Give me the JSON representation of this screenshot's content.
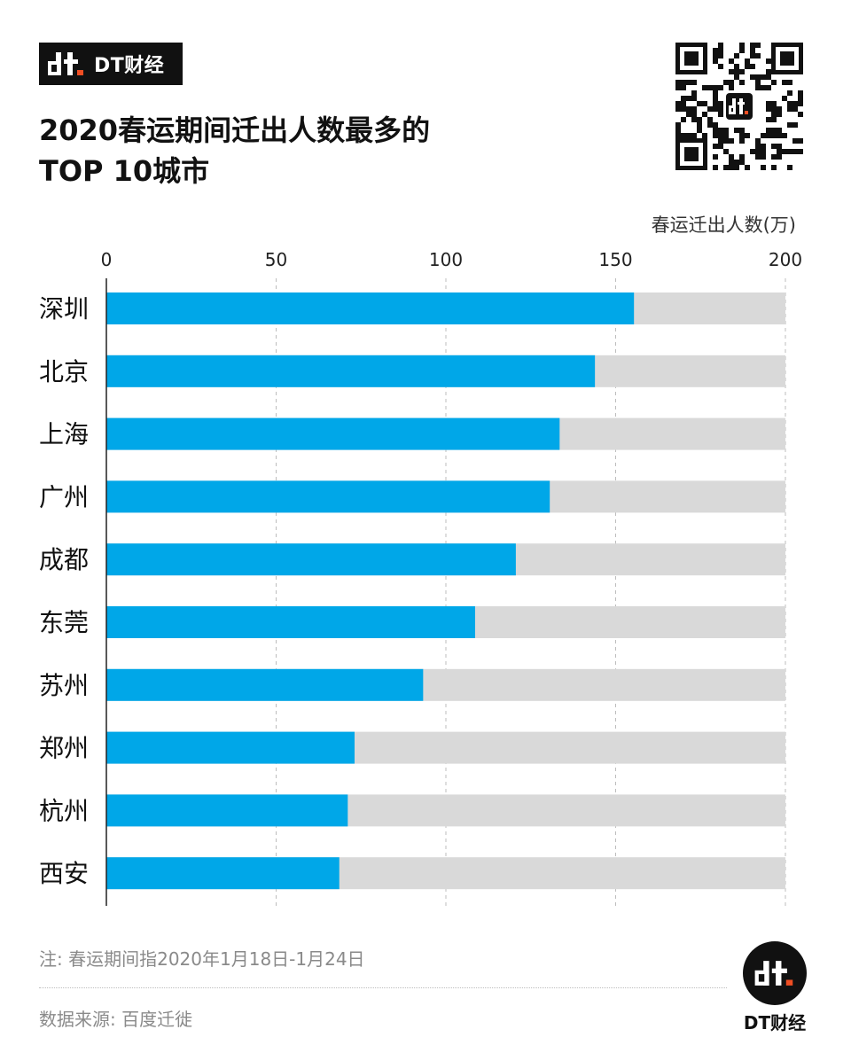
{
  "brand": {
    "name": "DT财经",
    "logo_icon": "dt-logo-icon",
    "accent": "#f04e23"
  },
  "title_lines": [
    "2020春运期间迁出人数最多的",
    "TOP 10城市"
  ],
  "qr_icon": "qr-code-icon",
  "note": "注: 春运期间指2020年1月18日-1月24日",
  "source": "数据来源: 百度迁徙",
  "footer_brand": "DT财经",
  "chart_data": {
    "type": "bar",
    "orientation": "horizontal",
    "title": "2020春运期间迁出人数最多的TOP 10城市",
    "xlabel": "春运迁出人数(万)",
    "ylabel": "",
    "categories": [
      "深圳",
      "北京",
      "上海",
      "广州",
      "成都",
      "东莞",
      "苏州",
      "郑州",
      "杭州",
      "西安"
    ],
    "values": [
      155.4,
      143.9,
      133.5,
      130.6,
      120.6,
      108.6,
      93.3,
      73.1,
      71.1,
      68.6
    ],
    "xlim": [
      0,
      200
    ],
    "xticks": [
      0,
      50,
      100,
      150,
      200
    ],
    "grid": true,
    "bar_color": "#00a7e8",
    "background_bar_color": "#d9d9d9",
    "legend": "none"
  }
}
